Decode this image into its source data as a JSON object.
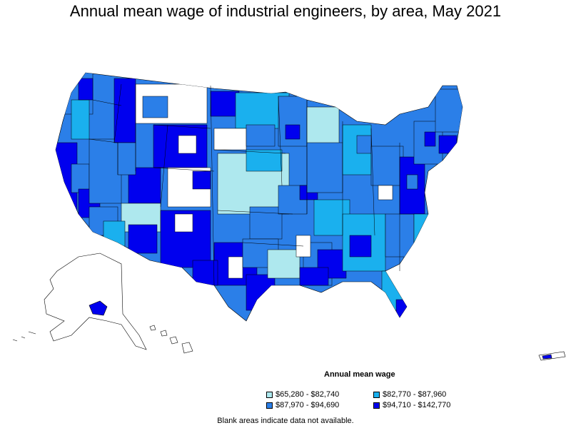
{
  "title": "Annual mean wage of industrial engineers, by area, May 2021",
  "legend": {
    "title": "Annual mean wage",
    "items": [
      {
        "label": "$65,280 - $82,740",
        "color": "#aee8ee"
      },
      {
        "label": "$82,770 - $87,960",
        "color": "#1ab0ee"
      },
      {
        "label": "$87,970 - $94,690",
        "color": "#2b7fe8"
      },
      {
        "label": "$94,710 - $142,770",
        "color": "#0000ee"
      }
    ]
  },
  "note": "Blank areas indicate data not available."
}
